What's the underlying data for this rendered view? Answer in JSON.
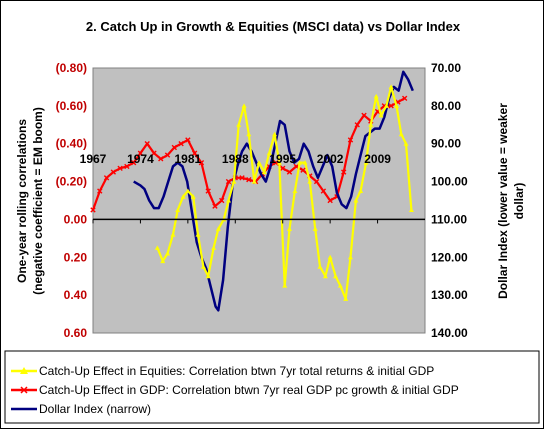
{
  "chart_data": {
    "type": "line",
    "title": "2. Catch Up in Growth & Equities (MSCI data) vs Dollar Index",
    "ylabel_left_line1": "One-year rolling correlations",
    "ylabel_left_line2": "(negative coefficient = EM boom)",
    "ylabel_right_line1": "Dollar Index (lower value = weaker",
    "ylabel_right_line2": "dollar)",
    "xlim": [
      1967,
      2016
    ],
    "ylim_left": [
      -0.8,
      0.6
    ],
    "ylim_right": [
      70,
      140
    ],
    "left_axis_note": "left axis values increase downward; labels shown as magnitudes with negatives in parentheses",
    "x_ticks": [
      {
        "value": 1967,
        "label": "1967"
      },
      {
        "value": 1974,
        "label": "1974"
      },
      {
        "value": 1981,
        "label": "1981"
      },
      {
        "value": 1988,
        "label": "1988"
      },
      {
        "value": 1995,
        "label": "1995"
      },
      {
        "value": 2002,
        "label": "2002"
      },
      {
        "value": 2009,
        "label": "2009"
      }
    ],
    "y_ticks_left": [
      {
        "value": -0.8,
        "label": "(0.80)"
      },
      {
        "value": -0.6,
        "label": "(0.60)"
      },
      {
        "value": -0.4,
        "label": "(0.40)"
      },
      {
        "value": -0.2,
        "label": "(0.20)"
      },
      {
        "value": 0.0,
        "label": "0.00"
      },
      {
        "value": 0.2,
        "label": "0.20"
      },
      {
        "value": 0.4,
        "label": "0.40"
      },
      {
        "value": 0.6,
        "label": "0.60"
      }
    ],
    "y_ticks_right": [
      {
        "value": 70,
        "label": "70.00"
      },
      {
        "value": 80,
        "label": "80.00"
      },
      {
        "value": 90,
        "label": "90.00"
      },
      {
        "value": 100,
        "label": "100.00"
      },
      {
        "value": 110,
        "label": "110.00"
      },
      {
        "value": 120,
        "label": "120.00"
      },
      {
        "value": 130,
        "label": "130.00"
      },
      {
        "value": 140,
        "label": "140.00"
      }
    ],
    "grid": false,
    "legend_position": "bottom",
    "plot_background": "#c0c0c0",
    "series": [
      {
        "name": "Catch-Up Effect in Equities: Correlation btwn 7yr total returns & initial GDP",
        "color": "#ffff00",
        "marker": "triangle",
        "axis": "left",
        "x": [
          1976.5,
          1977.3,
          1978.0,
          1978.8,
          1979.5,
          1980.3,
          1981.0,
          1981.8,
          1982.5,
          1983.3,
          1984.0,
          1984.8,
          1985.5,
          1986.3,
          1987.0,
          1987.8,
          1988.5,
          1989.3,
          1990.0,
          1990.8,
          1991.5,
          1992.3,
          1993.0,
          1993.8,
          1994.5,
          1995.3,
          1996.0,
          1996.8,
          1997.5,
          1998.3,
          1999.0,
          1999.8,
          2000.5,
          2001.3,
          2002.0,
          2002.8,
          2003.5,
          2004.3,
          2005.0,
          2005.8,
          2006.5,
          2007.3,
          2008.0,
          2008.8,
          2009.5,
          2010.3,
          2011.0,
          2011.8,
          2012.5,
          2013.2,
          2014.0
        ],
        "values": [
          0.15,
          0.22,
          0.18,
          0.08,
          -0.05,
          -0.12,
          -0.15,
          -0.12,
          0.08,
          0.25,
          0.3,
          0.15,
          0.05,
          0.0,
          -0.1,
          -0.2,
          -0.5,
          -0.6,
          -0.45,
          -0.2,
          -0.3,
          -0.25,
          -0.35,
          -0.45,
          -0.3,
          0.35,
          0.05,
          -0.15,
          -0.3,
          -0.3,
          -0.2,
          0.05,
          0.25,
          0.3,
          0.2,
          0.3,
          0.35,
          0.42,
          0.2,
          -0.1,
          -0.15,
          -0.3,
          -0.5,
          -0.65,
          -0.55,
          -0.6,
          -0.7,
          -0.6,
          -0.45,
          -0.4,
          -0.05
        ]
      },
      {
        "name": "Catch-Up Effect in GDP: Correlation btwn 7yr real GDP pc growth & initial GDP",
        "color": "#ff0000",
        "marker": "x",
        "axis": "left",
        "x": [
          1967.0,
          1968.0,
          1969.0,
          1970.0,
          1971.0,
          1972.0,
          1973.0,
          1974.0,
          1975.0,
          1976.0,
          1977.0,
          1978.0,
          1979.0,
          1980.0,
          1981.0,
          1982.0,
          1983.0,
          1984.0,
          1985.0,
          1986.0,
          1987.0,
          1988.0,
          1989.0,
          1990.0,
          1991.0,
          1992.0,
          1993.0,
          1994.0,
          1995.0,
          1996.0,
          1997.0,
          1998.0,
          1999.0,
          2000.0,
          2001.0,
          2002.0,
          2003.0,
          2004.0,
          2005.0,
          2006.0,
          2007.0,
          2008.0,
          2009.0,
          2010.0,
          2011.0,
          2012.0,
          2013.0
        ],
        "values": [
          -0.05,
          -0.15,
          -0.22,
          -0.25,
          -0.27,
          -0.28,
          -0.3,
          -0.35,
          -0.4,
          -0.35,
          -0.32,
          -0.34,
          -0.38,
          -0.4,
          -0.42,
          -0.35,
          -0.3,
          -0.15,
          -0.07,
          -0.1,
          -0.2,
          -0.22,
          -0.22,
          -0.21,
          -0.2,
          -0.24,
          -0.28,
          -0.3,
          -0.27,
          -0.25,
          -0.28,
          -0.26,
          -0.23,
          -0.2,
          -0.15,
          -0.1,
          -0.12,
          -0.25,
          -0.42,
          -0.5,
          -0.55,
          -0.52,
          -0.57,
          -0.6,
          -0.6,
          -0.62,
          -0.64
        ]
      },
      {
        "name": "Dollar Index (narrow)",
        "color": "#000080",
        "marker": "none",
        "axis": "right",
        "x": [
          1973.0,
          1974.0,
          1974.6,
          1975.3,
          1976.0,
          1976.7,
          1977.4,
          1978.1,
          1978.8,
          1979.5,
          1980.2,
          1980.9,
          1981.6,
          1982.3,
          1983.0,
          1983.7,
          1984.4,
          1985.1,
          1985.5,
          1986.2,
          1986.9,
          1987.6,
          1988.3,
          1989.0,
          1989.7,
          1990.4,
          1991.1,
          1991.8,
          1992.5,
          1993.2,
          1993.9,
          1994.6,
          1995.3,
          1996.0,
          1996.7,
          1997.4,
          1998.1,
          1998.8,
          1999.5,
          2000.2,
          2000.9,
          2001.6,
          2002.3,
          2003.0,
          2003.7,
          2004.4,
          2005.1,
          2005.8,
          2006.5,
          2007.2,
          2007.9,
          2008.6,
          2009.3,
          2010.0,
          2010.7,
          2011.4,
          2012.1,
          2012.8,
          2013.5,
          2014.2
        ],
        "values": [
          100,
          101,
          102,
          105,
          107,
          107,
          104,
          100,
          96,
          95,
          96,
          100,
          108,
          116,
          120,
          123,
          128,
          133,
          134,
          126,
          112,
          101,
          96,
          92,
          90,
          92,
          95,
          98,
          100,
          96,
          90,
          84,
          85,
          92,
          95,
          94,
          90,
          92,
          96,
          99,
          96,
          93,
          96,
          103,
          106,
          107,
          104,
          98,
          93,
          88,
          87,
          86,
          86,
          83,
          78,
          75,
          76,
          71,
          73,
          76
        ]
      }
    ]
  }
}
